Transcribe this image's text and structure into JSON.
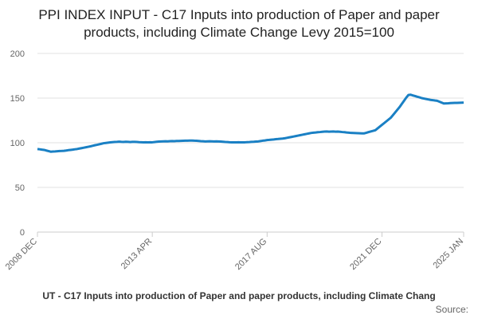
{
  "chart_data": {
    "type": "line",
    "title": "PPI INDEX INPUT - C17 Inputs into production of Paper and paper products, including Climate Change Levy 2015=100",
    "caption": "UT - C17 Inputs into production of Paper and paper products, including Climate Chang",
    "source": "Source:",
    "categories": [
      "2008 DEC",
      null,
      null,
      null,
      null,
      null,
      null,
      null,
      null,
      null,
      null,
      null,
      null,
      null,
      null,
      null,
      null,
      null,
      null,
      null,
      null,
      null,
      null,
      null,
      null,
      null,
      null,
      null,
      null,
      null,
      null,
      null,
      null,
      null,
      null,
      null,
      null,
      null,
      null,
      null,
      null,
      null,
      null,
      null,
      null,
      null,
      null,
      null,
      null,
      null,
      null,
      null,
      "2013 APR",
      null,
      null,
      null,
      null,
      null,
      null,
      null,
      null,
      null,
      null,
      null,
      null,
      null,
      null,
      null,
      null,
      null,
      null,
      null,
      null,
      null,
      null,
      null,
      null,
      null,
      null,
      null,
      null,
      null,
      null,
      null,
      null,
      null,
      null,
      null,
      null,
      null,
      null,
      null,
      null,
      null,
      null,
      null,
      null,
      null,
      null,
      null,
      null,
      null,
      null,
      null,
      "2017 AUG",
      null,
      null,
      null,
      null,
      null,
      null,
      null,
      null,
      null,
      null,
      null,
      null,
      null,
      null,
      null,
      null,
      null,
      null,
      null,
      null,
      null,
      null,
      null,
      null,
      null,
      null,
      null,
      null,
      null,
      null,
      null,
      null,
      null,
      null,
      null,
      null,
      null,
      null,
      null,
      null,
      null,
      null,
      null,
      null,
      null,
      null,
      null,
      null,
      null,
      null,
      null,
      "2021 DEC",
      null,
      null,
      null,
      null,
      null,
      null,
      null,
      null,
      null,
      null,
      null,
      null,
      null,
      null,
      null,
      null,
      null,
      null,
      null,
      null,
      null,
      null,
      null,
      null,
      null,
      null,
      null,
      null,
      null,
      null,
      null,
      null,
      null,
      null,
      null,
      null,
      "2025 JAN"
    ],
    "series": [
      {
        "color": "#1a80c4",
        "values": [
          93,
          92.7,
          92.3,
          92,
          91.3,
          90.7,
          90,
          90.2,
          90.3,
          90.5,
          90.7,
          90.8,
          91,
          91.3,
          91.7,
          92,
          92.3,
          92.7,
          93,
          93.5,
          94,
          94.5,
          95,
          95.5,
          96,
          96.6,
          97.2,
          97.7,
          98.3,
          98.9,
          99.5,
          99.8,
          100.1,
          100.4,
          100.7,
          100.9,
          101,
          101.2,
          101,
          100.9,
          101.1,
          101,
          100.8,
          101,
          101,
          100.9,
          100.7,
          100.6,
          100.5,
          100.6,
          100.5,
          100.6,
          100.5,
          100.8,
          101.1,
          101.3,
          101.5,
          101.6,
          101.7,
          101.6,
          101.8,
          101.9,
          101.8,
          102,
          102,
          102.1,
          102.2,
          102.3,
          102.3,
          102.4,
          102.5,
          102.3,
          102.2,
          102,
          101.8,
          101.7,
          101.5,
          101.6,
          101.7,
          101.6,
          101.5,
          101.6,
          101.5,
          101.3,
          101.1,
          100.9,
          100.8,
          100.6,
          100.5,
          100.4,
          100.5,
          100.6,
          100.4,
          100.5,
          100.5,
          100.7,
          100.8,
          101,
          101.1,
          101.3,
          101.5,
          101.9,
          102.3,
          102.6,
          103,
          103.2,
          103.5,
          103.7,
          104,
          104.2,
          104.5,
          104.7,
          105,
          105.5,
          106,
          106.5,
          107,
          107.5,
          108,
          108.5,
          109,
          109.5,
          110,
          110.5,
          111,
          111.3,
          111.5,
          111.8,
          112,
          112.3,
          112.5,
          112.6,
          112.4,
          112.5,
          112.6,
          112.4,
          112.5,
          112.3,
          112,
          111.8,
          111.5,
          111.3,
          111,
          110.9,
          110.8,
          110.7,
          110.6,
          110.5,
          110.5,
          111.2,
          112,
          112.7,
          113.3,
          114,
          116,
          118,
          120,
          122,
          124,
          126,
          128,
          131,
          134,
          137,
          140,
          143.5,
          147,
          150.5,
          153.5,
          153.8,
          153,
          152.3,
          151.5,
          150.8,
          150,
          149.5,
          149,
          148.5,
          148,
          147.7,
          147.3,
          147,
          146,
          145,
          144,
          144.1,
          144.2,
          144.4,
          144.5,
          144.6,
          144.7,
          144.8,
          144.9,
          145
        ]
      }
    ],
    "ylim": [
      0,
      200
    ],
    "yticks": [
      0,
      50,
      100,
      150,
      200
    ],
    "grid": true
  }
}
